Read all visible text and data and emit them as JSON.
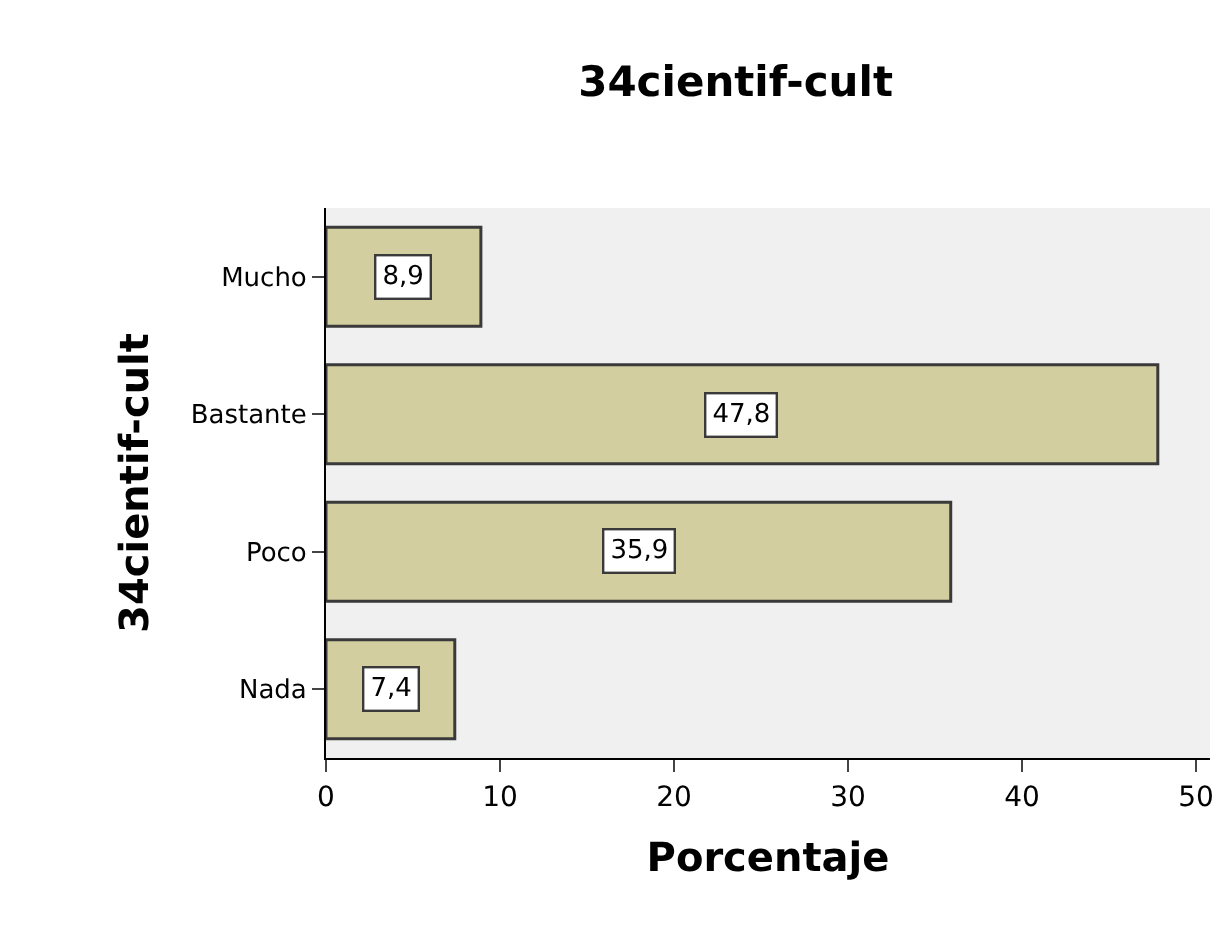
{
  "chart_data": {
    "type": "bar",
    "orientation": "horizontal",
    "title": "34cientif-cult",
    "xlabel": "Porcentaje",
    "ylabel": "34cientif-cult",
    "categories": [
      "Mucho",
      "Bastante",
      "Poco",
      "Nada"
    ],
    "values": [
      8.9,
      47.8,
      35.9,
      7.4
    ],
    "value_labels": [
      "8,9",
      "47,8",
      "35,9",
      "7,4"
    ],
    "color": "#d3ce9f",
    "xlim": [
      0,
      50.8
    ],
    "xticks": [
      0,
      10,
      20,
      30,
      40,
      50
    ],
    "grid": false
  }
}
